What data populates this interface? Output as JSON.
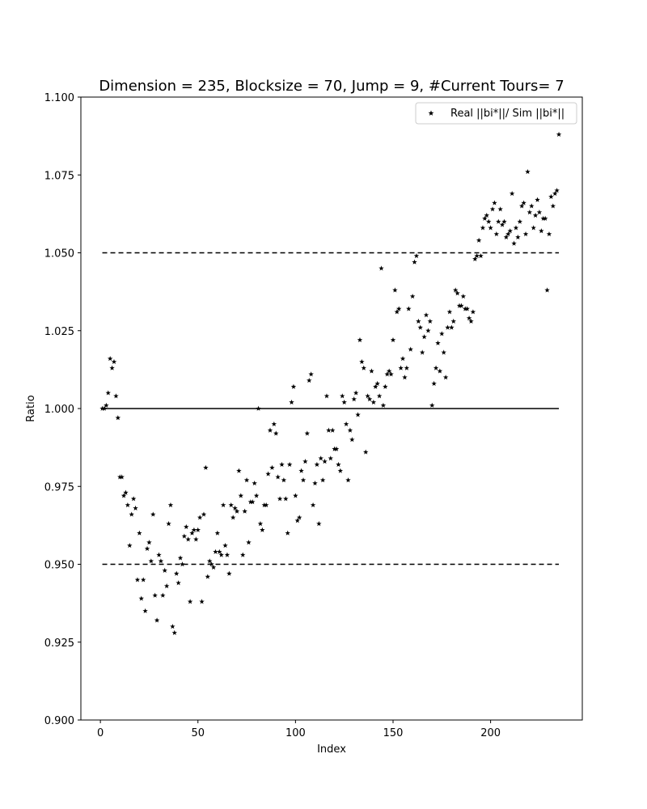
{
  "chart_data": {
    "type": "scatter",
    "title": "Dimension = 235, Blocksize = 70, Jump = 9, #Current Tours= 7",
    "xlabel": "Index",
    "ylabel": "Ratio",
    "xlim": [
      -10,
      247
    ],
    "ylim": [
      0.9,
      1.1
    ],
    "x_ticks": [
      0,
      50,
      100,
      150,
      200
    ],
    "x_tick_labels": [
      "0",
      "50",
      "100",
      "150",
      "200"
    ],
    "y_ticks": [
      0.9,
      0.925,
      0.95,
      0.975,
      1.0,
      1.025,
      1.05,
      1.075,
      1.1
    ],
    "y_tick_labels": [
      "0.900",
      "0.925",
      "0.950",
      "0.975",
      "1.000",
      "1.025",
      "1.050",
      "1.075",
      "1.100"
    ],
    "grid": false,
    "legend": {
      "placement": "top-right",
      "entries": [
        "Real ||bi*||/ Sim ||bi*||"
      ]
    },
    "reference_lines": [
      {
        "y": 1.05,
        "x": [
          1,
          235
        ],
        "style": "dashed"
      },
      {
        "y": 1.0,
        "x": [
          1,
          235
        ],
        "style": "solid"
      },
      {
        "y": 0.95,
        "x": [
          1,
          235
        ],
        "style": "dashed"
      }
    ],
    "series": [
      {
        "name": "Real ||bi*||/ Sim ||bi*||",
        "marker": "star",
        "color": "#000000",
        "points": [
          [
            1,
            1.0
          ],
          [
            2,
            1.0
          ],
          [
            3,
            1.001
          ],
          [
            4,
            1.005
          ],
          [
            5,
            1.016
          ],
          [
            6,
            1.013
          ],
          [
            7,
            1.015
          ],
          [
            8,
            1.004
          ],
          [
            9,
            0.997
          ],
          [
            10,
            0.978
          ],
          [
            11,
            0.978
          ],
          [
            12,
            0.972
          ],
          [
            13,
            0.973
          ],
          [
            14,
            0.969
          ],
          [
            15,
            0.956
          ],
          [
            16,
            0.966
          ],
          [
            17,
            0.971
          ],
          [
            18,
            0.968
          ],
          [
            19,
            0.945
          ],
          [
            20,
            0.96
          ],
          [
            21,
            0.939
          ],
          [
            22,
            0.945
          ],
          [
            23,
            0.935
          ],
          [
            24,
            0.955
          ],
          [
            25,
            0.957
          ],
          [
            26,
            0.951
          ],
          [
            27,
            0.966
          ],
          [
            28,
            0.94
          ],
          [
            29,
            0.932
          ],
          [
            30,
            0.953
          ],
          [
            31,
            0.951
          ],
          [
            32,
            0.94
          ],
          [
            33,
            0.948
          ],
          [
            34,
            0.943
          ],
          [
            35,
            0.963
          ],
          [
            36,
            0.969
          ],
          [
            37,
            0.93
          ],
          [
            38,
            0.928
          ],
          [
            39,
            0.947
          ],
          [
            40,
            0.944
          ],
          [
            41,
            0.952
          ],
          [
            42,
            0.95
          ],
          [
            43,
            0.959
          ],
          [
            44,
            0.962
          ],
          [
            45,
            0.958
          ],
          [
            46,
            0.938
          ],
          [
            47,
            0.96
          ],
          [
            48,
            0.961
          ],
          [
            49,
            0.958
          ],
          [
            50,
            0.961
          ],
          [
            51,
            0.965
          ],
          [
            52,
            0.938
          ],
          [
            53,
            0.966
          ],
          [
            54,
            0.981
          ],
          [
            55,
            0.946
          ],
          [
            56,
            0.951
          ],
          [
            57,
            0.95
          ],
          [
            58,
            0.949
          ],
          [
            59,
            0.954
          ],
          [
            60,
            0.96
          ],
          [
            61,
            0.954
          ],
          [
            62,
            0.953
          ],
          [
            63,
            0.969
          ],
          [
            64,
            0.956
          ],
          [
            65,
            0.953
          ],
          [
            66,
            0.947
          ],
          [
            67,
            0.969
          ],
          [
            68,
            0.965
          ],
          [
            69,
            0.968
          ],
          [
            70,
            0.967
          ],
          [
            71,
            0.98
          ],
          [
            72,
            0.972
          ],
          [
            73,
            0.953
          ],
          [
            74,
            0.967
          ],
          [
            75,
            0.977
          ],
          [
            76,
            0.957
          ],
          [
            77,
            0.97
          ],
          [
            78,
            0.97
          ],
          [
            79,
            0.976
          ],
          [
            80,
            0.972
          ],
          [
            81,
            1.0
          ],
          [
            82,
            0.963
          ],
          [
            83,
            0.961
          ],
          [
            84,
            0.969
          ],
          [
            85,
            0.969
          ],
          [
            86,
            0.979
          ],
          [
            87,
            0.993
          ],
          [
            88,
            0.981
          ],
          [
            89,
            0.995
          ],
          [
            90,
            0.992
          ],
          [
            91,
            0.978
          ],
          [
            92,
            0.971
          ],
          [
            93,
            0.982
          ],
          [
            94,
            0.977
          ],
          [
            95,
            0.971
          ],
          [
            96,
            0.96
          ],
          [
            97,
            0.982
          ],
          [
            98,
            1.002
          ],
          [
            99,
            1.007
          ],
          [
            100,
            0.972
          ],
          [
            101,
            0.964
          ],
          [
            102,
            0.965
          ],
          [
            103,
            0.98
          ],
          [
            104,
            0.977
          ],
          [
            105,
            0.983
          ],
          [
            106,
            0.992
          ],
          [
            107,
            1.009
          ],
          [
            108,
            1.011
          ],
          [
            109,
            0.969
          ],
          [
            110,
            0.976
          ],
          [
            111,
            0.982
          ],
          [
            112,
            0.963
          ],
          [
            113,
            0.984
          ],
          [
            114,
            0.977
          ],
          [
            115,
            0.983
          ],
          [
            116,
            1.004
          ],
          [
            117,
            0.993
          ],
          [
            118,
            0.984
          ],
          [
            119,
            0.993
          ],
          [
            120,
            0.987
          ],
          [
            121,
            0.987
          ],
          [
            122,
            0.982
          ],
          [
            123,
            0.98
          ],
          [
            124,
            1.004
          ],
          [
            125,
            1.002
          ],
          [
            126,
            0.995
          ],
          [
            127,
            0.977
          ],
          [
            128,
            0.993
          ],
          [
            129,
            0.99
          ],
          [
            130,
            1.003
          ],
          [
            131,
            1.005
          ],
          [
            132,
            0.998
          ],
          [
            133,
            1.022
          ],
          [
            134,
            1.015
          ],
          [
            135,
            1.013
          ],
          [
            136,
            0.986
          ],
          [
            137,
            1.004
          ],
          [
            138,
            1.003
          ],
          [
            139,
            1.012
          ],
          [
            140,
            1.002
          ],
          [
            141,
            1.007
          ],
          [
            142,
            1.008
          ],
          [
            143,
            1.004
          ],
          [
            144,
            1.045
          ],
          [
            145,
            1.001
          ],
          [
            146,
            1.007
          ],
          [
            147,
            1.011
          ],
          [
            148,
            1.012
          ],
          [
            149,
            1.011
          ],
          [
            150,
            1.022
          ],
          [
            151,
            1.038
          ],
          [
            152,
            1.031
          ],
          [
            153,
            1.032
          ],
          [
            154,
            1.013
          ],
          [
            155,
            1.016
          ],
          [
            156,
            1.01
          ],
          [
            157,
            1.013
          ],
          [
            158,
            1.032
          ],
          [
            159,
            1.019
          ],
          [
            160,
            1.036
          ],
          [
            161,
            1.047
          ],
          [
            162,
            1.049
          ],
          [
            163,
            1.028
          ],
          [
            164,
            1.026
          ],
          [
            165,
            1.018
          ],
          [
            166,
            1.023
          ],
          [
            167,
            1.03
          ],
          [
            168,
            1.025
          ],
          [
            169,
            1.028
          ],
          [
            170,
            1.001
          ],
          [
            171,
            1.008
          ],
          [
            172,
            1.013
          ],
          [
            173,
            1.021
          ],
          [
            174,
            1.012
          ],
          [
            175,
            1.024
          ],
          [
            176,
            1.018
          ],
          [
            177,
            1.01
          ],
          [
            178,
            1.026
          ],
          [
            179,
            1.031
          ],
          [
            180,
            1.026
          ],
          [
            181,
            1.028
          ],
          [
            182,
            1.038
          ],
          [
            183,
            1.037
          ],
          [
            184,
            1.033
          ],
          [
            185,
            1.033
          ],
          [
            186,
            1.036
          ],
          [
            187,
            1.032
          ],
          [
            188,
            1.032
          ],
          [
            189,
            1.029
          ],
          [
            190,
            1.028
          ],
          [
            191,
            1.031
          ],
          [
            192,
            1.048
          ],
          [
            193,
            1.049
          ],
          [
            194,
            1.054
          ],
          [
            195,
            1.049
          ],
          [
            196,
            1.058
          ],
          [
            197,
            1.061
          ],
          [
            198,
            1.062
          ],
          [
            199,
            1.06
          ],
          [
            200,
            1.058
          ],
          [
            201,
            1.064
          ],
          [
            202,
            1.066
          ],
          [
            203,
            1.056
          ],
          [
            204,
            1.06
          ],
          [
            205,
            1.064
          ],
          [
            206,
            1.059
          ],
          [
            207,
            1.06
          ],
          [
            208,
            1.055
          ],
          [
            209,
            1.056
          ],
          [
            210,
            1.057
          ],
          [
            211,
            1.069
          ],
          [
            212,
            1.053
          ],
          [
            213,
            1.058
          ],
          [
            214,
            1.055
          ],
          [
            215,
            1.06
          ],
          [
            216,
            1.065
          ],
          [
            217,
            1.066
          ],
          [
            218,
            1.056
          ],
          [
            219,
            1.076
          ],
          [
            220,
            1.063
          ],
          [
            221,
            1.065
          ],
          [
            222,
            1.058
          ],
          [
            223,
            1.062
          ],
          [
            224,
            1.067
          ],
          [
            225,
            1.063
          ],
          [
            226,
            1.057
          ],
          [
            227,
            1.061
          ],
          [
            228,
            1.061
          ],
          [
            229,
            1.038
          ],
          [
            230,
            1.056
          ],
          [
            231,
            1.068
          ],
          [
            232,
            1.065
          ],
          [
            233,
            1.069
          ],
          [
            234,
            1.07
          ],
          [
            235,
            1.088
          ]
        ]
      }
    ]
  }
}
